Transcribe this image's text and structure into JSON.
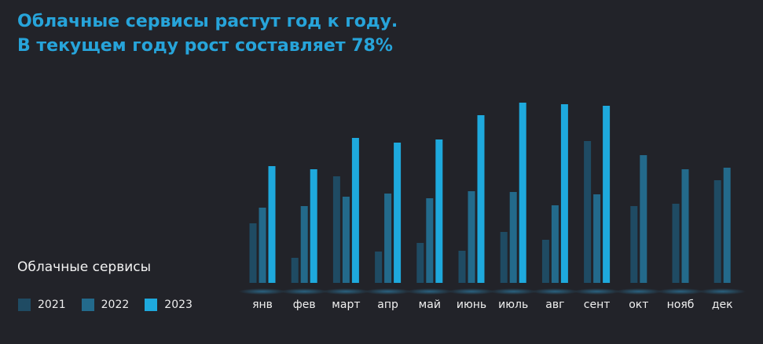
{
  "title_lines": [
    "Облачные сервисы растут год к году.",
    "В текущем году рост составляет 78%"
  ],
  "chart_data": {
    "type": "bar",
    "title": "Облачные сервисы",
    "categories": [
      "янв",
      "фев",
      "март",
      "апр",
      "май",
      "июнь",
      "июль",
      "авг",
      "сент",
      "окт",
      "нояб",
      "дек"
    ],
    "series": [
      {
        "name": "2021",
        "color": "#1f4b63",
        "values": [
          76,
          32,
          136,
          40,
          51,
          41,
          65,
          55,
          181,
          98,
          101,
          131
        ]
      },
      {
        "name": "2022",
        "color": "#236a8b",
        "values": [
          96,
          98,
          110,
          114,
          108,
          117,
          116,
          99,
          113,
          163,
          145,
          147
        ]
      },
      {
        "name": "2023",
        "color": "#1ea9dd",
        "values": [
          149,
          145,
          185,
          179,
          183,
          214,
          230,
          228,
          226,
          null,
          null,
          null
        ]
      }
    ],
    "ylim": [
      0,
      240
    ],
    "grid": false,
    "legend_position": "bottom-left",
    "xlabel": "",
    "ylabel": ""
  }
}
